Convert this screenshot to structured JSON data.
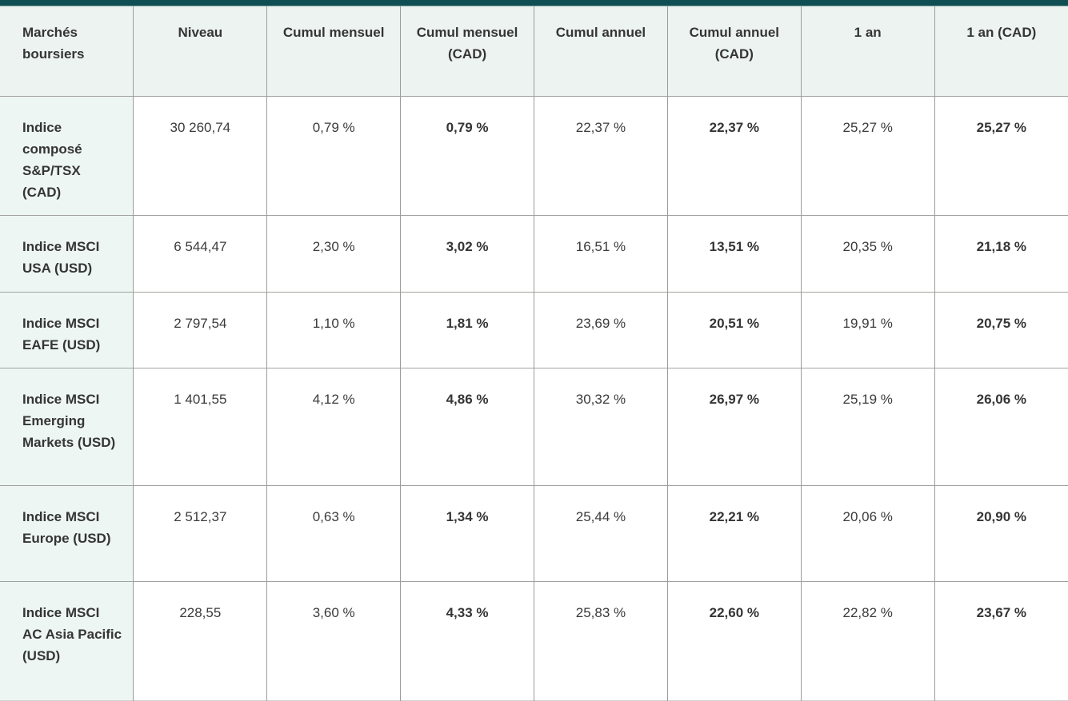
{
  "colors": {
    "accent_teal": "#0f4e52",
    "header_background": "#ecf3f1",
    "label_column_background": "#edf6f3",
    "grid_line": "#9c9c98",
    "text": "#3b3b3b"
  },
  "chart_data": {
    "type": "table",
    "title": "Marchés boursiers",
    "columns": [
      "Marchés boursiers",
      "Niveau",
      "Cumul mensuel",
      "Cumul mensuel (CAD)",
      "Cumul annuel",
      "Cumul annuel (CAD)",
      "1 an",
      "1 an (CAD)"
    ],
    "rows": [
      [
        "Indice composé S&P/TSX (CAD)",
        "30 260,74",
        "0,79 %",
        "0,79 %",
        "22,37 %",
        "22,37 %",
        "25,27 %",
        "25,27 %"
      ],
      [
        "Indice MSCI USA (USD)",
        "6 544,47",
        "2,30 %",
        "3,02 %",
        "16,51 %",
        "13,51 %",
        "20,35 %",
        "21,18 %"
      ],
      [
        "Indice MSCI EAFE (USD)",
        "2 797,54",
        "1,10 %",
        "1,81 %",
        "23,69 %",
        "20,51 %",
        "19,91 %",
        "20,75 %"
      ],
      [
        "Indice MSCI Emerging Markets (USD)",
        "1 401,55",
        "4,12 %",
        "4,86 %",
        "30,32 %",
        "26,97 %",
        "25,19 %",
        "26,06 %"
      ],
      [
        "Indice MSCI Europe (USD)",
        "2 512,37",
        "0,63 %",
        "1,34 %",
        "25,44 %",
        "22,21 %",
        "20,06 %",
        "20,90 %"
      ],
      [
        "Indice MSCI AC Asia Pacific (USD)",
        "228,55",
        "3,60 %",
        "4,33 %",
        "25,83 %",
        "22,60 %",
        "22,82 %",
        "23,67 %"
      ]
    ],
    "bold_columns": [
      "Marchés boursiers",
      "Cumul mensuel (CAD)",
      "Cumul annuel (CAD)",
      "1 an (CAD)"
    ],
    "number_format": "fr-CA",
    "layout_hints": {
      "grid": true,
      "header_row": true,
      "label_column_highlighted": true
    }
  }
}
